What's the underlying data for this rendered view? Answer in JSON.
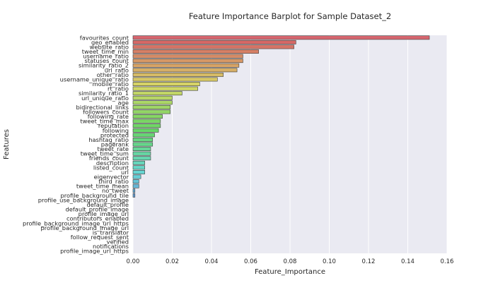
{
  "chart_data": {
    "type": "bar",
    "orientation": "horizontal",
    "title": "Feature Importance Barplot for Sample Dataset_2",
    "xlabel": "Feature_Importance",
    "ylabel": "Features",
    "xlim": [
      0,
      0.16
    ],
    "xticks": [
      "0.00",
      "0.02",
      "0.04",
      "0.06",
      "0.08",
      "0.10",
      "0.12",
      "0.14",
      "0.16"
    ],
    "grid": true,
    "categories": [
      "favourites_count",
      "geo_enabled",
      "website_ratio",
      "tweet_time_min",
      "username_ratio",
      "statuses_count",
      "similarity_ratio_2",
      "url_ratio",
      "other_ratio",
      "username_unique_ratio",
      "mobile_ratio",
      "rt_ratio",
      "similarity_ratio_1",
      "url_unique_ratio",
      "age",
      "bidirectional_links",
      "followers_count",
      "following_rate",
      "tweet_time_max",
      "reputation",
      "following",
      "protected",
      "hashtag_ratio",
      "pagerank",
      "tweet_rate",
      "tweet_time_sum",
      "friends_count",
      "description",
      "listed_count",
      "url",
      "eigenvector",
      "third_ratio",
      "tweet_time_mean",
      "no_tweet",
      "profile_background_tile",
      "profile_use_background_image",
      "default_profile",
      "default_profile_image",
      "profile_image_url",
      "contributors_enabled",
      "profile_background_image_url_https",
      "profile_background_image_url",
      "is_translator",
      "follow_request_sent",
      "verified",
      "notifications",
      "profile_image_url_https"
    ],
    "values": [
      0.151,
      0.083,
      0.082,
      0.064,
      0.056,
      0.056,
      0.054,
      0.053,
      0.046,
      0.043,
      0.034,
      0.033,
      0.025,
      0.02,
      0.02,
      0.019,
      0.019,
      0.015,
      0.014,
      0.014,
      0.013,
      0.011,
      0.01,
      0.01,
      0.009,
      0.009,
      0.009,
      0.006,
      0.006,
      0.006,
      0.004,
      0.003,
      0.003,
      0.001,
      0.001,
      0.0,
      0.0,
      0.0,
      0.0,
      0.0,
      0.0,
      0.0,
      0.0,
      0.0,
      0.0,
      0.0,
      0.0
    ],
    "colors": {
      "background": "#eaeaf2",
      "grid": "#ffffff",
      "bar_edge": "#3d3d3d",
      "palette_start": "#e8898e",
      "palette_mid": "#46ab56",
      "palette_end": "#a78ce0"
    }
  }
}
